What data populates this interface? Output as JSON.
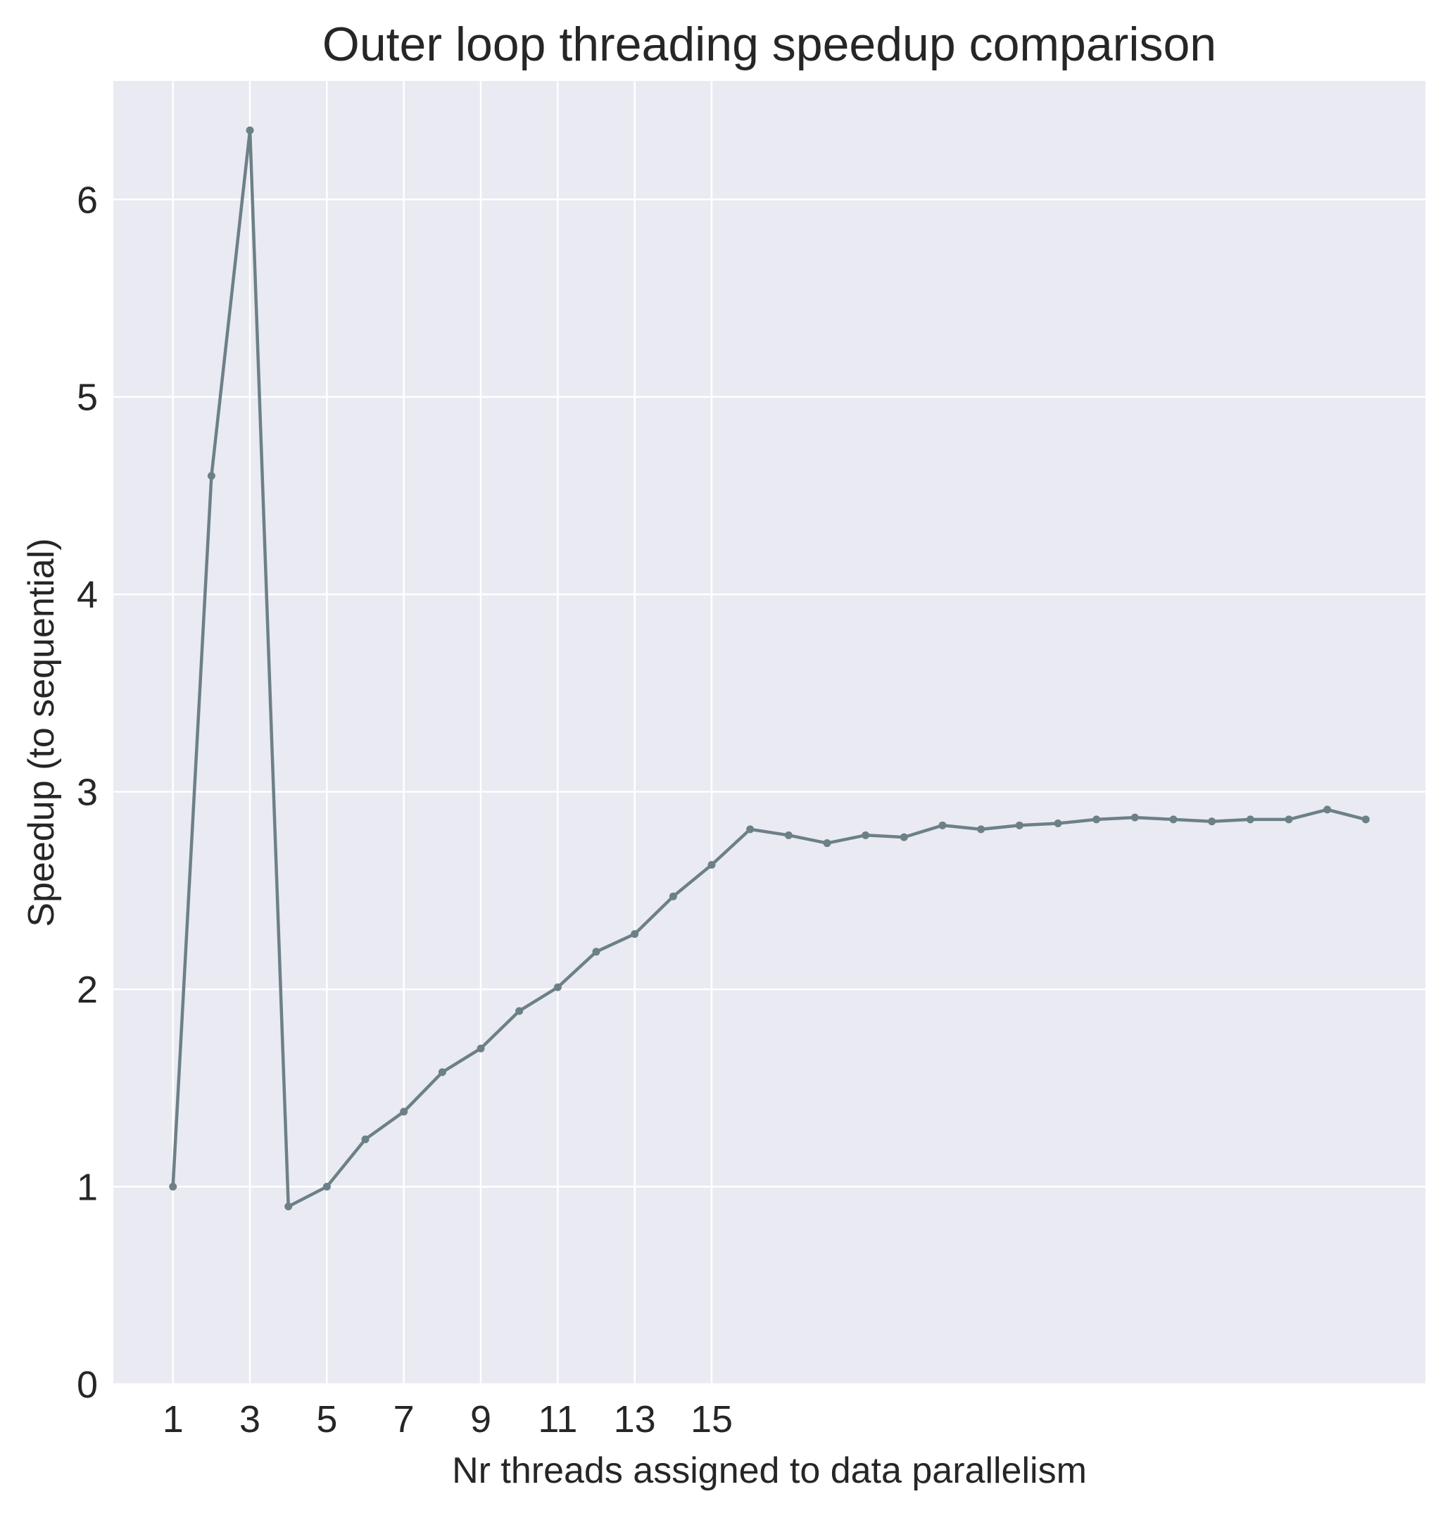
{
  "chart_data": {
    "type": "line",
    "title": "Outer loop threading speedup comparison",
    "xlabel": "Nr threads assigned to data parallelism",
    "ylabel": "Speedup (to sequential)",
    "x": [
      1,
      2,
      3,
      4,
      5,
      6,
      7,
      8,
      9,
      10,
      11,
      12,
      13,
      14,
      15,
      16,
      17,
      18,
      19,
      20,
      21,
      22,
      23,
      24,
      25,
      26,
      27,
      28,
      29,
      30,
      31,
      32
    ],
    "series": [
      {
        "name": "speedup",
        "values": [
          1.0,
          4.6,
          6.35,
          0.9,
          1.0,
          1.24,
          1.38,
          1.58,
          1.7,
          1.89,
          2.01,
          2.19,
          2.28,
          2.47,
          2.63,
          2.81,
          2.78,
          2.74,
          2.78,
          2.77,
          2.83,
          2.81,
          2.83,
          2.84,
          2.86,
          2.87,
          2.86,
          2.85,
          2.86,
          2.86,
          2.91,
          2.86
        ],
        "color": "#6c8087"
      }
    ],
    "xticks": [
      1,
      3,
      5,
      7,
      9,
      11,
      13,
      15
    ],
    "yticks": [
      0,
      1,
      2,
      3,
      4,
      5,
      6
    ],
    "xlim": [
      -0.55,
      33.55
    ],
    "ylim": [
      0,
      6.6
    ],
    "grid": true,
    "background_color": "#eaeaf2",
    "grid_color": "#ffffff"
  }
}
